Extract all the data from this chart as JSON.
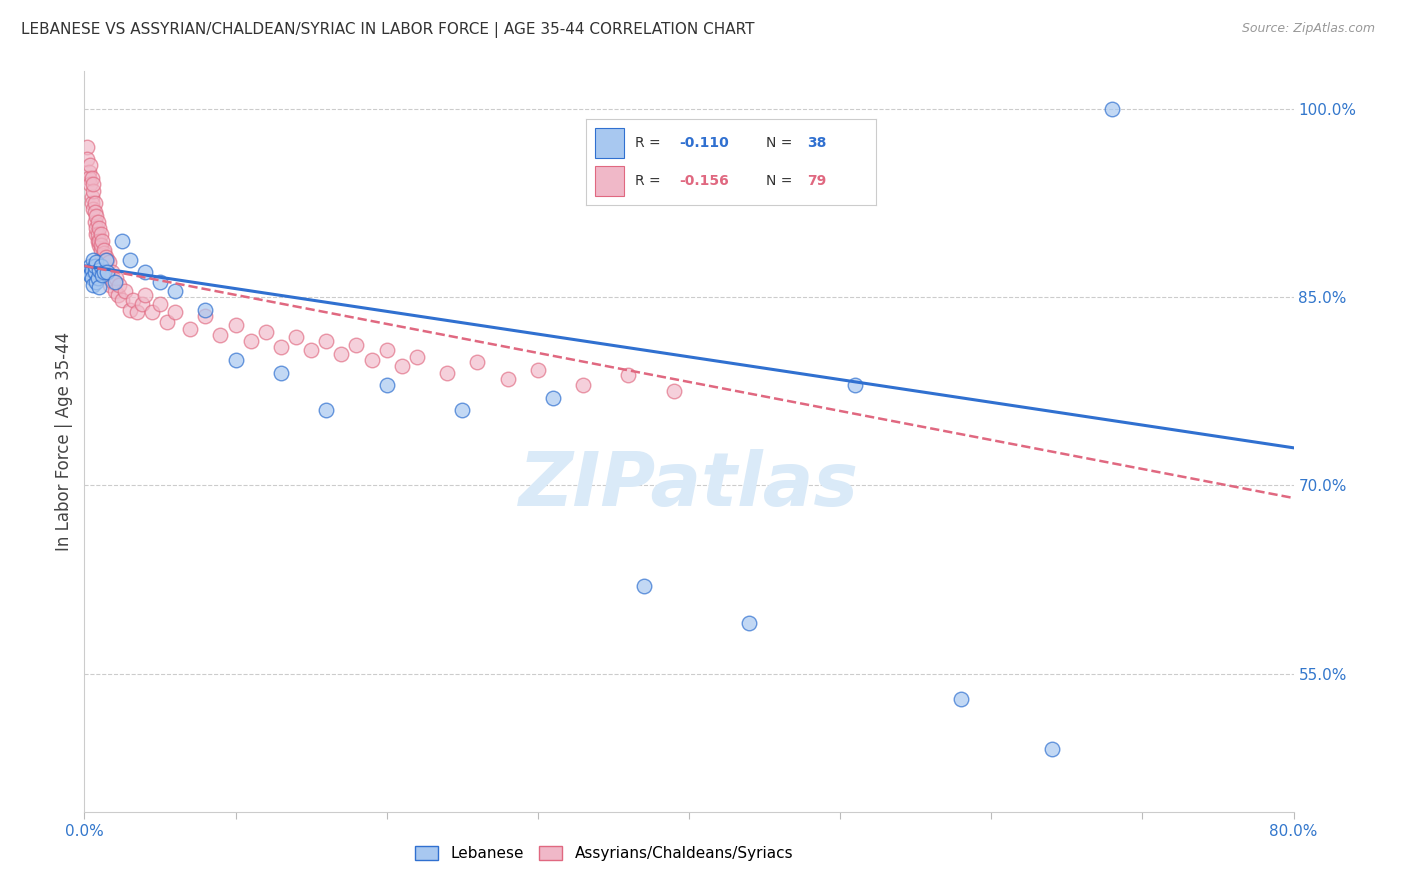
{
  "title": "LEBANESE VS ASSYRIAN/CHALDEAN/SYRIAC IN LABOR FORCE | AGE 35-44 CORRELATION CHART",
  "source": "Source: ZipAtlas.com",
  "ylabel_left": "In Labor Force | Age 35-44",
  "xlim": [
    0.0,
    0.8
  ],
  "ylim": [
    0.44,
    1.03
  ],
  "y_ticks_right": [
    0.55,
    0.7,
    0.85,
    1.0
  ],
  "y_tick_labels_right": [
    "55.0%",
    "70.0%",
    "85.0%",
    "100.0%"
  ],
  "blue_color": "#a8c8f0",
  "pink_color": "#f0b8c8",
  "blue_line_color": "#3070d0",
  "pink_line_color": "#e06880",
  "watermark": "ZIPatlas",
  "watermark_color": "#daeaf8",
  "blue_scatter_x": [
    0.003,
    0.004,
    0.004,
    0.005,
    0.005,
    0.006,
    0.006,
    0.007,
    0.007,
    0.008,
    0.008,
    0.009,
    0.01,
    0.01,
    0.011,
    0.012,
    0.013,
    0.014,
    0.015,
    0.02,
    0.025,
    0.03,
    0.04,
    0.05,
    0.06,
    0.08,
    0.1,
    0.13,
    0.16,
    0.2,
    0.25,
    0.31,
    0.37,
    0.44,
    0.51,
    0.58,
    0.64,
    0.68
  ],
  "blue_scatter_y": [
    0.87,
    0.875,
    0.868,
    0.872,
    0.865,
    0.88,
    0.86,
    0.87,
    0.875,
    0.862,
    0.878,
    0.865,
    0.872,
    0.858,
    0.875,
    0.868,
    0.87,
    0.88,
    0.87,
    0.862,
    0.895,
    0.88,
    0.87,
    0.862,
    0.855,
    0.84,
    0.8,
    0.79,
    0.76,
    0.78,
    0.76,
    0.77,
    0.62,
    0.59,
    0.78,
    0.53,
    0.49,
    1.0
  ],
  "pink_scatter_x": [
    0.002,
    0.002,
    0.003,
    0.003,
    0.004,
    0.004,
    0.005,
    0.005,
    0.005,
    0.006,
    0.006,
    0.006,
    0.007,
    0.007,
    0.007,
    0.008,
    0.008,
    0.008,
    0.009,
    0.009,
    0.009,
    0.01,
    0.01,
    0.01,
    0.011,
    0.011,
    0.011,
    0.012,
    0.012,
    0.013,
    0.013,
    0.013,
    0.014,
    0.014,
    0.015,
    0.015,
    0.016,
    0.016,
    0.017,
    0.018,
    0.019,
    0.02,
    0.021,
    0.022,
    0.023,
    0.025,
    0.027,
    0.03,
    0.032,
    0.035,
    0.038,
    0.04,
    0.045,
    0.05,
    0.055,
    0.06,
    0.07,
    0.08,
    0.09,
    0.1,
    0.11,
    0.12,
    0.13,
    0.14,
    0.15,
    0.16,
    0.17,
    0.18,
    0.19,
    0.2,
    0.21,
    0.22,
    0.24,
    0.26,
    0.28,
    0.3,
    0.33,
    0.36,
    0.39
  ],
  "pink_scatter_y": [
    0.97,
    0.96,
    0.95,
    0.945,
    0.955,
    0.94,
    0.93,
    0.925,
    0.945,
    0.935,
    0.92,
    0.94,
    0.91,
    0.925,
    0.918,
    0.9,
    0.915,
    0.905,
    0.895,
    0.91,
    0.9,
    0.892,
    0.905,
    0.895,
    0.888,
    0.9,
    0.892,
    0.882,
    0.895,
    0.885,
    0.875,
    0.888,
    0.872,
    0.882,
    0.87,
    0.88,
    0.865,
    0.878,
    0.86,
    0.87,
    0.862,
    0.855,
    0.865,
    0.852,
    0.86,
    0.848,
    0.855,
    0.84,
    0.848,
    0.838,
    0.845,
    0.852,
    0.838,
    0.845,
    0.83,
    0.838,
    0.825,
    0.835,
    0.82,
    0.828,
    0.815,
    0.822,
    0.81,
    0.818,
    0.808,
    0.815,
    0.805,
    0.812,
    0.8,
    0.808,
    0.795,
    0.802,
    0.79,
    0.798,
    0.785,
    0.792,
    0.78,
    0.788,
    0.775
  ]
}
